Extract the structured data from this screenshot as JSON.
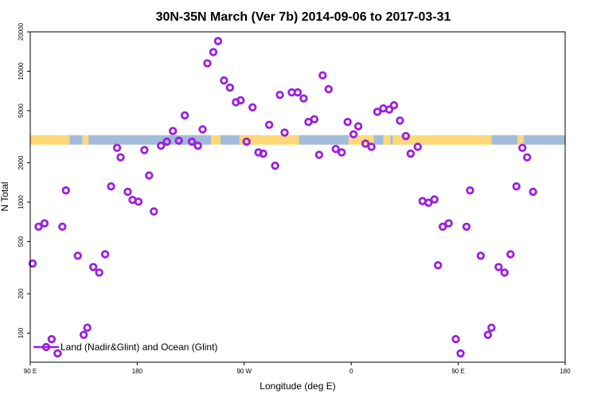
{
  "chart_data": {
    "type": "scatter",
    "title": "30N-35N March (Ver 7b)   2014-09-06 to 2017-03-31",
    "xlabel": "Longitude (deg E)",
    "ylabel": "N Total",
    "y_scale": "log",
    "xlim": [
      90,
      540
    ],
    "ylim": [
      60,
      20000
    ],
    "x_ticks": [
      {
        "value": 90,
        "label": "90 E"
      },
      {
        "value": 180,
        "label": "180"
      },
      {
        "value": 270,
        "label": "90 W"
      },
      {
        "value": 360,
        "label": "0"
      },
      {
        "value": 450,
        "label": "90 E"
      },
      {
        "value": 540,
        "label": "180"
      }
    ],
    "y_ticks": [
      {
        "value": 100,
        "label": "100"
      },
      {
        "value": 200,
        "label": "200"
      },
      {
        "value": 500,
        "label": "500"
      },
      {
        "value": 1000,
        "label": "1000"
      },
      {
        "value": 2000,
        "label": "2000"
      },
      {
        "value": 5000,
        "label": "5000"
      },
      {
        "value": 10000,
        "label": "10000"
      },
      {
        "value": 20000,
        "label": "20000"
      }
    ],
    "legend": {
      "position": "bottom-left",
      "entries": [
        "Land (Nadir&Glint) and Ocean (Glint)"
      ]
    },
    "colors": {
      "series": "#9b1fe0",
      "land": "#ffd878",
      "ocean": "#a3bbdb"
    },
    "surface_band": {
      "y_range": [
        2750,
        3250
      ],
      "land_segments": [
        [
          90,
          123
        ],
        [
          134,
          139
        ],
        [
          242,
          250
        ],
        [
          266,
          316
        ],
        [
          358,
          379
        ],
        [
          387,
          393
        ],
        [
          395,
          478
        ],
        [
          500,
          505
        ]
      ],
      "ocean_segments": [
        [
          123,
          134
        ],
        [
          139,
          242
        ],
        [
          250,
          266
        ],
        [
          316,
          358
        ],
        [
          379,
          387
        ],
        [
          393,
          395
        ],
        [
          478,
          500
        ],
        [
          505,
          540
        ]
      ]
    },
    "series": [
      {
        "name": "Land (Nadir&Glint) and Ocean (Glint)",
        "points": [
          [
            92,
            340
          ],
          [
            97,
            650
          ],
          [
            102,
            690
          ],
          [
            108,
            90
          ],
          [
            113,
            70
          ],
          [
            117,
            650
          ],
          [
            120,
            1230
          ],
          [
            130,
            390
          ],
          [
            135,
            97
          ],
          [
            138,
            110
          ],
          [
            143,
            320
          ],
          [
            148,
            290
          ],
          [
            153,
            400
          ],
          [
            158,
            1320
          ],
          [
            163,
            2600
          ],
          [
            166,
            2200
          ],
          [
            172,
            1200
          ],
          [
            176,
            1040
          ],
          [
            181,
            1010
          ],
          [
            186,
            2500
          ],
          [
            190,
            1600
          ],
          [
            194,
            850
          ],
          [
            200,
            2700
          ],
          [
            205,
            2900
          ],
          [
            210,
            3500
          ],
          [
            215,
            2950
          ],
          [
            220,
            4600
          ],
          [
            226,
            2900
          ],
          [
            231,
            2700
          ],
          [
            235,
            3600
          ],
          [
            239,
            11500
          ],
          [
            244,
            14000
          ],
          [
            248,
            17000
          ],
          [
            253,
            8500
          ],
          [
            258,
            7500
          ],
          [
            263,
            5800
          ],
          [
            267,
            6000
          ],
          [
            272,
            2900
          ],
          [
            277,
            5300
          ],
          [
            282,
            2400
          ],
          [
            286,
            2350
          ],
          [
            291,
            3900
          ],
          [
            296,
            1900
          ],
          [
            300,
            6600
          ],
          [
            304,
            3400
          ],
          [
            310,
            6900
          ],
          [
            315,
            6900
          ],
          [
            320,
            6200
          ],
          [
            324,
            4100
          ],
          [
            329,
            4300
          ],
          [
            333,
            2300
          ],
          [
            336,
            9300
          ],
          [
            341,
            7300
          ],
          [
            347,
            2550
          ],
          [
            352,
            2400
          ],
          [
            357,
            4100
          ],
          [
            362,
            3300
          ],
          [
            366,
            3800
          ],
          [
            372,
            2800
          ],
          [
            377,
            2650
          ],
          [
            382,
            4900
          ],
          [
            387,
            5200
          ],
          [
            392,
            5100
          ],
          [
            396,
            5500
          ],
          [
            401,
            4200
          ],
          [
            406,
            3200
          ],
          [
            410,
            2350
          ],
          [
            416,
            2650
          ],
          [
            420,
            1020
          ],
          [
            425,
            990
          ],
          [
            430,
            1050
          ],
          [
            433,
            330
          ],
          [
            437,
            650
          ],
          [
            442,
            690
          ],
          [
            448,
            90
          ],
          [
            452,
            70
          ],
          [
            457,
            650
          ],
          [
            460,
            1230
          ],
          [
            469,
            390
          ],
          [
            475,
            97
          ],
          [
            478,
            110
          ],
          [
            484,
            320
          ],
          [
            489,
            290
          ],
          [
            494,
            400
          ],
          [
            499,
            1320
          ],
          [
            504,
            2600
          ],
          [
            508,
            2200
          ],
          [
            513,
            1200
          ]
        ]
      }
    ]
  }
}
